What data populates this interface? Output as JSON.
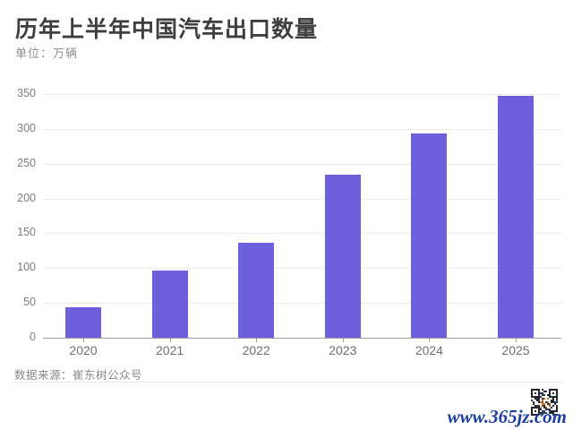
{
  "title": "历年上半年中国汽车出口数量",
  "subtitle": "单位：万辆",
  "footer": {
    "source": "数据来源：崔东树公众号"
  },
  "watermark": {
    "text": "www.365jz.com",
    "color": "#1d3f9e",
    "icon": "qr-code-icon"
  },
  "colors": {
    "bar": "#6e5fdd",
    "gridline": "#ececec",
    "axis_line": "#9e9e9e",
    "title_text": "#3e3e3e",
    "muted_text": "#8a8a8a",
    "tick_text": "#7d7d7d",
    "background": "#fefefe"
  },
  "chart_data": {
    "type": "bar",
    "categories": [
      "2020",
      "2021",
      "2022",
      "2023",
      "2024",
      "2025"
    ],
    "values": [
      44,
      97,
      136,
      234,
      294,
      348
    ],
    "title": "历年上半年中国汽车出口数量",
    "xlabel": "",
    "ylabel": "单位：万辆",
    "ylim": [
      0,
      350
    ],
    "yticks": [
      0,
      50,
      100,
      150,
      200,
      250,
      300,
      350
    ],
    "grid": true,
    "legend": false,
    "bar_color": "#6e5fdd"
  }
}
